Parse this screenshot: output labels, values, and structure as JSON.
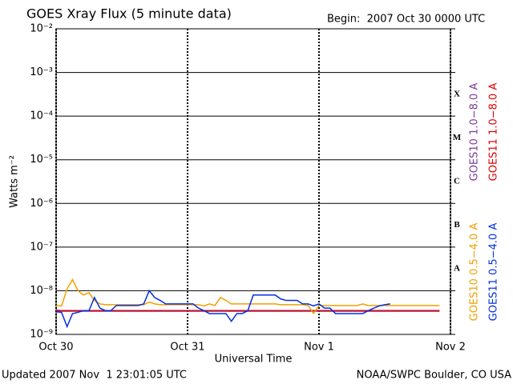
{
  "chart_data": {
    "type": "line",
    "title": "GOES Xray Flux (5 minute data)",
    "subtitle": "Begin:  2007 Oct 30 0000 UTC",
    "xlabel": "Universal Time",
    "ylabel": "Watts m⁻²",
    "footer_left": "Updated 2007 Nov  1 23:01:05 UTC",
    "footer_right": "NOAA/SWPC Boulder, CO USA",
    "log_y": true,
    "grid": true,
    "flare_classes": [
      "X",
      "M",
      "C",
      "B",
      "A"
    ],
    "xlim": [
      0,
      72
    ],
    "xticks": [
      {
        "value": 0,
        "label": "Oct 30"
      },
      {
        "value": 24,
        "label": "Oct 31"
      },
      {
        "value": 48,
        "label": "Nov 1"
      },
      {
        "value": 72,
        "label": "Nov 2"
      }
    ],
    "ylim": [
      1e-09,
      0.01
    ],
    "yticks": [
      {
        "value": 1e-09,
        "label": "10⁻⁹"
      },
      {
        "value": 1e-08,
        "label": "10⁻⁸"
      },
      {
        "value": 1e-07,
        "label": "10⁻⁷"
      },
      {
        "value": 1e-06,
        "label": "10⁻⁶"
      },
      {
        "value": 1e-05,
        "label": "10⁻⁵"
      },
      {
        "value": 0.0001,
        "label": "10⁻⁴"
      },
      {
        "value": 0.001,
        "label": "10⁻³"
      },
      {
        "value": 0.01,
        "label": "10⁻²"
      }
    ],
    "x": [
      0,
      1,
      2,
      3,
      4,
      5,
      6,
      7,
      8,
      9,
      10,
      11,
      12,
      13,
      14,
      15,
      16,
      17,
      18,
      19,
      20,
      21,
      22,
      23,
      24,
      25,
      26,
      27,
      28,
      29,
      30,
      31,
      32,
      33,
      34,
      35,
      36,
      37,
      38,
      39,
      40,
      41,
      42,
      43,
      44,
      45,
      46,
      47,
      48,
      49,
      50,
      51,
      52,
      53,
      54,
      55,
      56,
      57,
      58,
      59,
      60,
      61,
      62,
      63,
      64,
      65,
      66,
      67,
      68,
      69,
      70
    ],
    "series": [
      {
        "name": "GOES10 1.0−8.0 A",
        "color": "#7a3c9a",
        "values": [
          3.4e-09,
          3.4e-09,
          3.4e-09,
          3.4e-09,
          3.4e-09,
          3.4e-09,
          3.4e-09,
          3.4e-09,
          3.4e-09,
          3.4e-09,
          3.4e-09,
          3.4e-09,
          3.4e-09,
          3.4e-09,
          3.4e-09,
          3.4e-09,
          3.4e-09,
          3.4e-09,
          3.4e-09,
          3.4e-09,
          3.4e-09,
          3.4e-09,
          3.4e-09,
          3.4e-09,
          3.4e-09,
          3.4e-09,
          3.4e-09,
          3.4e-09,
          3.4e-09,
          3.4e-09,
          3.4e-09,
          3.4e-09,
          3.4e-09,
          3.4e-09,
          3.4e-09,
          3.4e-09,
          3.4e-09,
          3.4e-09,
          3.4e-09,
          3.4e-09,
          3.4e-09,
          3.4e-09,
          3.4e-09,
          3.4e-09,
          3.4e-09,
          3.4e-09,
          3.4e-09,
          3.4e-09,
          3.4e-09,
          3.4e-09,
          3.4e-09,
          3.4e-09,
          3.4e-09,
          3.4e-09,
          3.4e-09,
          3.4e-09,
          3.4e-09,
          3.4e-09,
          3.4e-09,
          3.4e-09,
          3.4e-09,
          3.4e-09,
          3.4e-09,
          3.4e-09,
          3.4e-09,
          3.4e-09,
          3.4e-09,
          3.4e-09,
          3.4e-09,
          3.4e-09,
          3.4e-09
        ]
      },
      {
        "name": "GOES11 1.0−8.0 A",
        "color": "#e00000",
        "values": [
          3.6e-09,
          3.5e-09,
          3.5e-09,
          3.5e-09,
          3.5e-09,
          3.5e-09,
          3.5e-09,
          3.5e-09,
          3.5e-09,
          3.5e-09,
          3.5e-09,
          3.5e-09,
          3.5e-09,
          3.5e-09,
          3.5e-09,
          3.5e-09,
          3.5e-09,
          3.5e-09,
          3.5e-09,
          3.5e-09,
          3.5e-09,
          3.5e-09,
          3.5e-09,
          3.5e-09,
          3.5e-09,
          3.5e-09,
          3.5e-09,
          3.5e-09,
          3.5e-09,
          3.5e-09,
          3.5e-09,
          3.5e-09,
          3.5e-09,
          3.5e-09,
          3.5e-09,
          3.5e-09,
          3.5e-09,
          3.5e-09,
          3.5e-09,
          3.5e-09,
          3.5e-09,
          3.5e-09,
          3.5e-09,
          3.5e-09,
          3.5e-09,
          3.5e-09,
          3.5e-09,
          3.5e-09,
          3.5e-09,
          3.5e-09,
          3.5e-09,
          3.5e-09,
          3.5e-09,
          3.5e-09,
          3.5e-09,
          3.5e-09,
          3.5e-09,
          3.5e-09,
          3.5e-09,
          3.5e-09,
          3.5e-09,
          3.5e-09,
          3.5e-09,
          3.5e-09,
          3.5e-09,
          3.5e-09,
          3.5e-09,
          3.5e-09,
          3.5e-09,
          3.5e-09,
          3.5e-09
        ]
      },
      {
        "name": "GOES10 0.5−4.0 A",
        "color": "#f0a000",
        "values": [
          4.6e-09,
          4.5e-09,
          1.1e-08,
          1.8e-08,
          1e-08,
          8e-09,
          9e-09,
          6e-09,
          5e-09,
          4.8e-09,
          4.8e-09,
          4.8e-09,
          4.8e-09,
          4.8e-09,
          4.8e-09,
          4.8e-09,
          4.8e-09,
          5.5e-09,
          5e-09,
          4.8e-09,
          4.8e-09,
          4.8e-09,
          4.8e-09,
          4.8e-09,
          4.8e-09,
          4.8e-09,
          4.8e-09,
          4.5e-09,
          5e-09,
          4.6e-09,
          7e-09,
          6e-09,
          5e-09,
          5e-09,
          5e-09,
          5e-09,
          5e-09,
          5e-09,
          5e-09,
          5e-09,
          5e-09,
          4.8e-09,
          4.8e-09,
          4.8e-09,
          4.8e-09,
          4.8e-09,
          4.6e-09,
          3e-09,
          4.6e-09,
          4.6e-09,
          4.6e-09,
          4.6e-09,
          4.6e-09,
          4.6e-09,
          4.6e-09,
          4.6e-09,
          5e-09,
          4.6e-09,
          4.6e-09,
          4.6e-09,
          4.6e-09,
          4.6e-09,
          4.6e-09,
          4.6e-09,
          4.6e-09,
          4.6e-09,
          4.6e-09,
          4.6e-09,
          4.6e-09,
          4.6e-09,
          4.6e-09
        ]
      },
      {
        "name": "GOES11 0.5−4.0 A",
        "color": "#0030e0",
        "values": [
          3.3e-09,
          3.2e-09,
          1.5e-09,
          3e-09,
          3.2e-09,
          3.5e-09,
          3.5e-09,
          7e-09,
          4e-09,
          3.5e-09,
          3.5e-09,
          4.6e-09,
          4.6e-09,
          4.6e-09,
          4.6e-09,
          4.6e-09,
          5e-09,
          1e-08,
          7e-09,
          6e-09,
          5e-09,
          5e-09,
          5e-09,
          5e-09,
          5e-09,
          5e-09,
          4e-09,
          3.5e-09,
          3e-09,
          3e-09,
          3e-09,
          3e-09,
          2e-09,
          3e-09,
          3e-09,
          3.5e-09,
          8e-09,
          8e-09,
          8e-09,
          8e-09,
          8e-09,
          6.5e-09,
          6e-09,
          6e-09,
          6e-09,
          5e-09,
          5e-09,
          4.5e-09,
          5e-09,
          4e-09,
          4e-09,
          3e-09,
          3e-09,
          3e-09,
          3e-09,
          3e-09,
          3e-09,
          3.5e-09,
          4e-09,
          4.5e-09,
          4.8e-09,
          5e-09,
          null,
          null,
          null,
          null,
          null,
          null,
          null,
          null,
          null
        ]
      }
    ]
  }
}
